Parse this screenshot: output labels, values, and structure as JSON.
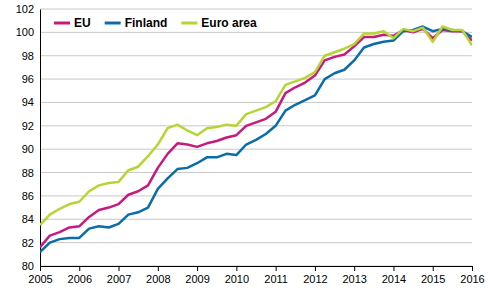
{
  "chart_data": {
    "type": "line",
    "x": [
      2005,
      2005.25,
      2005.5,
      2005.75,
      2006,
      2006.25,
      2006.5,
      2006.75,
      2007,
      2007.25,
      2007.5,
      2007.75,
      2008,
      2008.25,
      2008.5,
      2008.75,
      2009,
      2009.25,
      2009.5,
      2009.75,
      2010,
      2010.25,
      2010.5,
      2010.75,
      2011,
      2011.25,
      2011.5,
      2011.75,
      2012,
      2012.25,
      2012.5,
      2012.75,
      2013,
      2013.25,
      2013.5,
      2013.75,
      2014,
      2014.25,
      2014.5,
      2014.75,
      2015,
      2015.25,
      2015.5,
      2015.75,
      2016
    ],
    "series": [
      {
        "name": "EU",
        "color": "#c71a7d",
        "values": [
          81.6,
          82.6,
          82.9,
          83.3,
          83.4,
          84.2,
          84.8,
          85.0,
          85.3,
          86.1,
          86.4,
          86.9,
          88.4,
          89.6,
          90.5,
          90.4,
          90.2,
          90.5,
          90.7,
          91.0,
          91.2,
          92.0,
          92.3,
          92.6,
          93.2,
          94.8,
          95.3,
          95.7,
          96.3,
          97.6,
          97.9,
          98.1,
          98.8,
          99.6,
          99.6,
          99.8,
          99.7,
          100.2,
          100.0,
          100.3,
          99.5,
          100.2,
          100.1,
          100.1,
          99.3
        ]
      },
      {
        "name": "Finland",
        "color": "#0a6ca8",
        "values": [
          81.2,
          82.0,
          82.3,
          82.4,
          82.4,
          83.2,
          83.4,
          83.3,
          83.6,
          84.4,
          84.6,
          85.0,
          86.6,
          87.5,
          88.3,
          88.4,
          88.8,
          89.3,
          89.3,
          89.6,
          89.5,
          90.4,
          90.8,
          91.3,
          92.0,
          93.3,
          93.8,
          94.2,
          94.6,
          96.0,
          96.5,
          96.8,
          97.6,
          98.7,
          99.0,
          99.2,
          99.3,
          100.1,
          100.2,
          100.5,
          100.1,
          100.3,
          100.2,
          100.1,
          99.6
        ]
      },
      {
        "name": "Euro area",
        "color": "#b6d534",
        "values": [
          83.5,
          84.4,
          84.9,
          85.3,
          85.5,
          86.4,
          86.9,
          87.1,
          87.2,
          88.2,
          88.5,
          89.4,
          90.4,
          91.8,
          92.1,
          91.6,
          91.2,
          91.8,
          91.9,
          92.1,
          92.0,
          93.0,
          93.3,
          93.6,
          94.1,
          95.5,
          95.8,
          96.1,
          96.6,
          98.0,
          98.3,
          98.6,
          99.0,
          99.9,
          99.9,
          100.1,
          99.5,
          100.3,
          100.1,
          100.4,
          99.2,
          100.5,
          100.2,
          100.2,
          98.9
        ]
      }
    ],
    "xlim": [
      2005,
      2016
    ],
    "xticks": [
      2005,
      2006,
      2007,
      2008,
      2009,
      2010,
      2011,
      2012,
      2013,
      2014,
      2015,
      2016
    ],
    "ylim": [
      80,
      102
    ],
    "yticks": [
      80,
      82,
      84,
      86,
      88,
      90,
      92,
      94,
      96,
      98,
      100,
      102
    ],
    "grid": true,
    "legend": "upper left"
  }
}
